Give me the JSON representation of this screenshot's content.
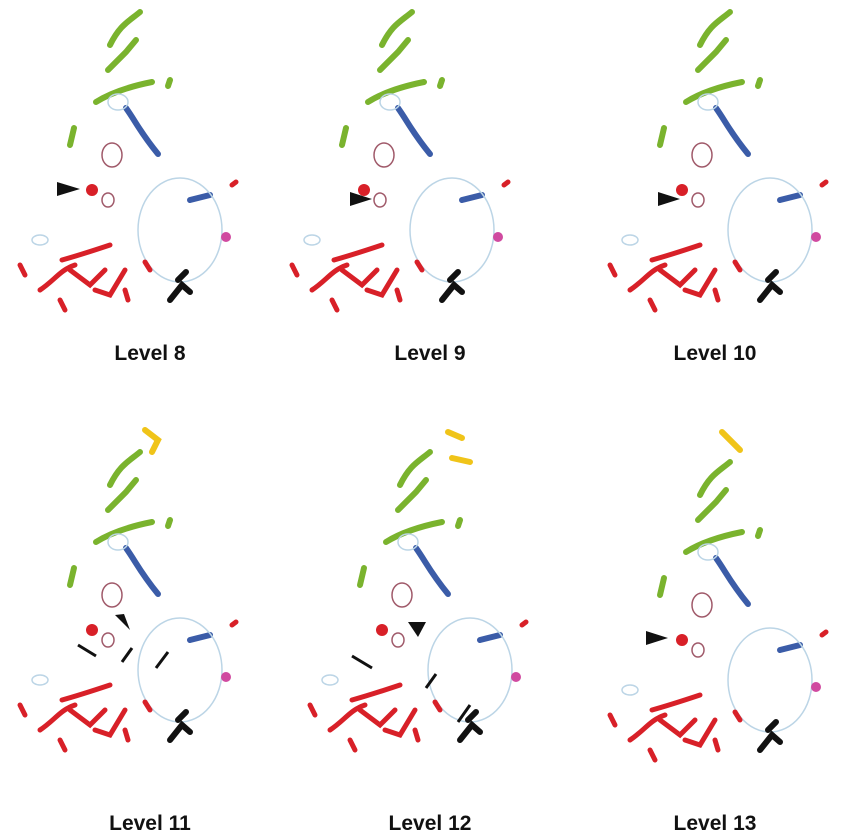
{
  "panels": [
    {
      "label": "Level 8"
    },
    {
      "label": "Level 9"
    },
    {
      "label": "Level 10"
    },
    {
      "label": "Level 11"
    },
    {
      "label": "Level 12"
    },
    {
      "label": "Level 13"
    }
  ]
}
